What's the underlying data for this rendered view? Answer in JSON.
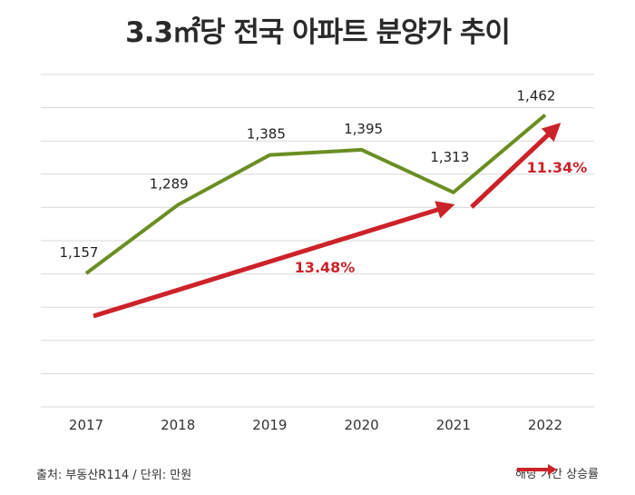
{
  "chart_data": {
    "type": "line",
    "title": "3.3㎡당 전국 아파트 분양가 추이",
    "categories": [
      "2017",
      "2018",
      "2019",
      "2020",
      "2021",
      "2022"
    ],
    "series": [
      {
        "values": [
          1157,
          1289,
          1385,
          1395,
          1313,
          1462
        ],
        "labels": [
          "1,157",
          "1,289",
          "1,385",
          "1,395",
          "1,313",
          "1,462"
        ],
        "color": "#6b8e23"
      }
    ],
    "ylim": [
      900,
      1540
    ],
    "grid": true,
    "annotations": [
      {
        "from": "2017",
        "to": "2021",
        "text": "13.48%",
        "color": "#cc2229"
      },
      {
        "from": "2021",
        "to": "2022",
        "text": "11.34%",
        "color": "#cc2229"
      }
    ]
  },
  "footer": {
    "source": "출처: 부동산R114 / 단위: 만원",
    "legend_label": "해당 기간 상승률"
  },
  "colors": {
    "line": "#6b8e23",
    "arrow": "#cc2229",
    "grid": "#d9d9d9"
  }
}
